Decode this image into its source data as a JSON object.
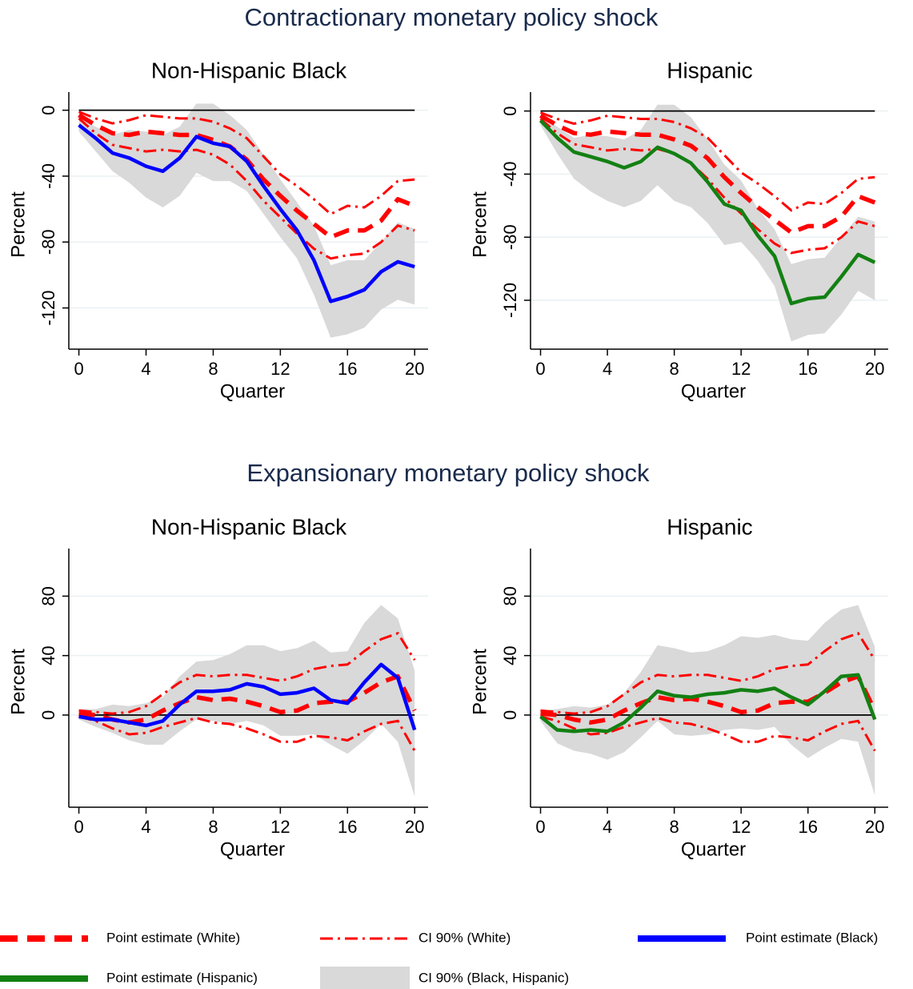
{
  "section_titles": [
    "Contractionary monetary policy shock",
    "Expansionary monetary policy shock"
  ],
  "chart_data": [
    {
      "type": "line",
      "title": "Non-Hispanic Black",
      "xlabel": "Quarter",
      "ylabel": "Percent",
      "x": [
        0,
        1,
        2,
        3,
        4,
        5,
        6,
        7,
        8,
        9,
        10,
        11,
        12,
        13,
        14,
        15,
        16,
        17,
        18,
        19,
        20
      ],
      "xlim": [
        -0.6,
        20.8
      ],
      "xticks": [
        0,
        4,
        8,
        12,
        16,
        20
      ],
      "ylim": [
        -145,
        11
      ],
      "yticks": [
        0,
        -40,
        -80,
        -120
      ],
      "grid": true,
      "refline": 0,
      "series": [
        {
          "name": "Point estimate (White)",
          "color": "#ff0000",
          "style": "dash",
          "values": [
            -3,
            -9,
            -14,
            -15,
            -13,
            -14,
            -15,
            -15,
            -18,
            -22,
            -30,
            -42,
            -52,
            -61,
            -69,
            -77,
            -73,
            -73,
            -67,
            -54,
            -58
          ]
        },
        {
          "name": "CI 90% (White)",
          "color": "#ff0000",
          "style": "dashdot",
          "upper": [
            -1,
            -5,
            -8,
            -6,
            -3,
            -4,
            -5,
            -5,
            -7,
            -11,
            -17,
            -28,
            -39,
            -46,
            -54,
            -63,
            -58,
            -59,
            -52,
            -43,
            -42
          ],
          "lower": [
            -5,
            -14,
            -21,
            -23,
            -25,
            -24,
            -25,
            -24,
            -27,
            -33,
            -43,
            -55,
            -65,
            -75,
            -84,
            -90,
            -88,
            -87,
            -80,
            -70,
            -73
          ]
        },
        {
          "name": "Point estimate (Black)",
          "color": "#0000ff",
          "style": "solid",
          "values": [
            -9,
            -17,
            -26,
            -29,
            -34,
            -37,
            -29,
            -16,
            -20,
            -22,
            -31,
            -46,
            -60,
            -73,
            -91,
            -116,
            -113,
            -109,
            -98,
            -92,
            -95
          ]
        },
        {
          "name": "CI 90% (Black, Hispanic)",
          "color": "#d9d9d9",
          "style": "band",
          "upper": [
            -5,
            -10,
            -15,
            -12,
            -13,
            -15,
            -10,
            4,
            4,
            -3,
            -12,
            -27,
            -42,
            -56,
            -70,
            -94,
            -91,
            -91,
            -80,
            -68,
            -72
          ],
          "lower": [
            -13,
            -25,
            -37,
            -44,
            -53,
            -59,
            -52,
            -38,
            -43,
            -43,
            -49,
            -63,
            -77,
            -90,
            -112,
            -138,
            -136,
            -132,
            -121,
            -115,
            -118
          ]
        }
      ]
    },
    {
      "type": "line",
      "title": "Hispanic",
      "xlabel": "Quarter",
      "ylabel": "Percent",
      "x": [
        0,
        1,
        2,
        3,
        4,
        5,
        6,
        7,
        8,
        9,
        10,
        11,
        12,
        13,
        14,
        15,
        16,
        17,
        18,
        19,
        20
      ],
      "xlim": [
        -0.6,
        20.8
      ],
      "xticks": [
        0,
        4,
        8,
        12,
        16,
        20
      ],
      "ylim": [
        -151,
        12
      ],
      "yticks": [
        0,
        -40,
        -80,
        -120
      ],
      "grid": true,
      "refline": 0,
      "series": [
        {
          "name": "Point estimate (White)",
          "color": "#ff0000",
          "style": "dash",
          "values": [
            -3,
            -9,
            -14,
            -15,
            -13,
            -14,
            -15,
            -15,
            -18,
            -22,
            -30,
            -42,
            -52,
            -61,
            -69,
            -77,
            -73,
            -73,
            -67,
            -54,
            -58
          ]
        },
        {
          "name": "CI 90% (White)",
          "color": "#ff0000",
          "style": "dashdot",
          "upper": [
            -1,
            -5,
            -8,
            -6,
            -3,
            -4,
            -5,
            -5,
            -7,
            -11,
            -17,
            -28,
            -39,
            -46,
            -54,
            -63,
            -58,
            -59,
            -52,
            -43,
            -42
          ],
          "lower": [
            -5,
            -14,
            -21,
            -23,
            -25,
            -24,
            -25,
            -24,
            -27,
            -33,
            -43,
            -55,
            -65,
            -75,
            -84,
            -90,
            -88,
            -87,
            -80,
            -70,
            -73
          ]
        },
        {
          "name": "Point estimate (Hispanic)",
          "color": "#138013",
          "style": "solid",
          "values": [
            -6,
            -17,
            -26,
            -29,
            -32,
            -36,
            -32,
            -23,
            -27,
            -33,
            -45,
            -59,
            -63,
            -79,
            -92,
            -122,
            -119,
            -118,
            -105,
            -91,
            -96
          ]
        },
        {
          "name": "CI 90% (Black, Hispanic)",
          "color": "#d9d9d9",
          "style": "band",
          "upper": [
            -3,
            -10,
            -17,
            -15,
            -16,
            -18,
            -12,
            4,
            4,
            -4,
            -18,
            -34,
            -44,
            -62,
            -75,
            -97,
            -94,
            -93,
            -80,
            -67,
            -70
          ],
          "lower": [
            -9,
            -27,
            -43,
            -51,
            -57,
            -61,
            -57,
            -47,
            -57,
            -61,
            -71,
            -85,
            -83,
            -95,
            -111,
            -146,
            -142,
            -141,
            -129,
            -114,
            -120
          ]
        }
      ]
    },
    {
      "type": "line",
      "title": "Non-Hispanic Black",
      "xlabel": "Quarter",
      "ylabel": "Percent",
      "x": [
        0,
        1,
        2,
        3,
        4,
        5,
        6,
        7,
        8,
        9,
        10,
        11,
        12,
        13,
        14,
        15,
        16,
        17,
        18,
        19,
        20
      ],
      "xlim": [
        -0.6,
        20.8
      ],
      "xticks": [
        0,
        4,
        8,
        12,
        16,
        20
      ],
      "ylim": [
        -62,
        112
      ],
      "yticks": [
        0,
        40,
        80
      ],
      "grid": true,
      "refline": 0,
      "series": [
        {
          "name": "Point estimate (White)",
          "color": "#ff0000",
          "style": "dash",
          "values": [
            1,
            0,
            -3,
            -5,
            -3,
            3,
            8,
            12,
            10,
            11,
            9,
            6,
            2,
            3,
            8,
            9,
            9,
            15,
            22,
            26,
            3
          ]
        },
        {
          "name": "CI 90% (White)",
          "color": "#ff0000",
          "style": "dashdot",
          "upper": [
            3,
            2,
            1,
            2,
            6,
            14,
            22,
            27,
            26,
            27,
            27,
            25,
            23,
            26,
            31,
            33,
            34,
            43,
            51,
            55,
            37
          ],
          "lower": [
            -1,
            -4,
            -9,
            -13,
            -12,
            -8,
            -5,
            -2,
            -5,
            -6,
            -9,
            -13,
            -18,
            -18,
            -14,
            -15,
            -17,
            -11,
            -6,
            -4,
            -24
          ]
        },
        {
          "name": "Point estimate (Black)",
          "color": "#0000ff",
          "style": "solid",
          "values": [
            -1,
            -3,
            -3,
            -5,
            -7,
            -4,
            7,
            16,
            16,
            17,
            21,
            19,
            14,
            15,
            18,
            10,
            8,
            22,
            34,
            25,
            -10
          ]
        },
        {
          "name": "CI 90% (Black, Hispanic)",
          "color": "#d9d9d9",
          "style": "band",
          "upper": [
            4,
            4,
            7,
            6,
            8,
            12,
            26,
            36,
            37,
            41,
            47,
            47,
            43,
            45,
            50,
            42,
            43,
            62,
            74,
            65,
            30
          ],
          "lower": [
            -3,
            -8,
            -12,
            -17,
            -20,
            -20,
            -11,
            -3,
            -4,
            -6,
            -4,
            -7,
            -14,
            -14,
            -13,
            -20,
            -26,
            -17,
            -6,
            -18,
            -55
          ]
        }
      ]
    },
    {
      "type": "line",
      "title": "Hispanic",
      "xlabel": "Quarter",
      "ylabel": "Percent",
      "x": [
        0,
        1,
        2,
        3,
        4,
        5,
        6,
        7,
        8,
        9,
        10,
        11,
        12,
        13,
        14,
        15,
        16,
        17,
        18,
        19,
        20
      ],
      "xlim": [
        -0.6,
        20.8
      ],
      "xticks": [
        0,
        4,
        8,
        12,
        16,
        20
      ],
      "ylim": [
        -62,
        112
      ],
      "yticks": [
        0,
        40,
        80
      ],
      "grid": true,
      "refline": 0,
      "series": [
        {
          "name": "Point estimate (White)",
          "color": "#ff0000",
          "style": "dash",
          "values": [
            1,
            0,
            -3,
            -5,
            -3,
            3,
            8,
            12,
            10,
            11,
            9,
            6,
            2,
            3,
            8,
            9,
            9,
            15,
            22,
            26,
            3
          ]
        },
        {
          "name": "CI 90% (White)",
          "color": "#ff0000",
          "style": "dashdot",
          "upper": [
            3,
            2,
            1,
            2,
            6,
            14,
            22,
            27,
            26,
            27,
            27,
            25,
            23,
            26,
            31,
            33,
            34,
            43,
            51,
            55,
            37
          ],
          "lower": [
            -1,
            -4,
            -9,
            -13,
            -12,
            -8,
            -5,
            -2,
            -5,
            -6,
            -9,
            -13,
            -18,
            -18,
            -14,
            -15,
            -17,
            -11,
            -6,
            -4,
            -24
          ]
        },
        {
          "name": "Point estimate (Hispanic)",
          "color": "#138013",
          "style": "solid",
          "values": [
            -1,
            -10,
            -11,
            -10,
            -11,
            -5,
            5,
            16,
            13,
            12,
            14,
            15,
            17,
            16,
            18,
            12,
            7,
            16,
            26,
            27,
            -3
          ]
        },
        {
          "name": "CI 90% (Black, Hispanic)",
          "color": "#d9d9d9",
          "style": "band",
          "upper": [
            3,
            4,
            6,
            5,
            7,
            15,
            29,
            47,
            45,
            42,
            43,
            47,
            53,
            52,
            54,
            51,
            50,
            62,
            71,
            74,
            46
          ],
          "lower": [
            -4,
            -19,
            -24,
            -26,
            -30,
            -25,
            -15,
            -4,
            -13,
            -14,
            -13,
            -10,
            -9,
            -10,
            -8,
            -20,
            -29,
            -22,
            -16,
            -18,
            -54
          ]
        }
      ]
    }
  ]
}
